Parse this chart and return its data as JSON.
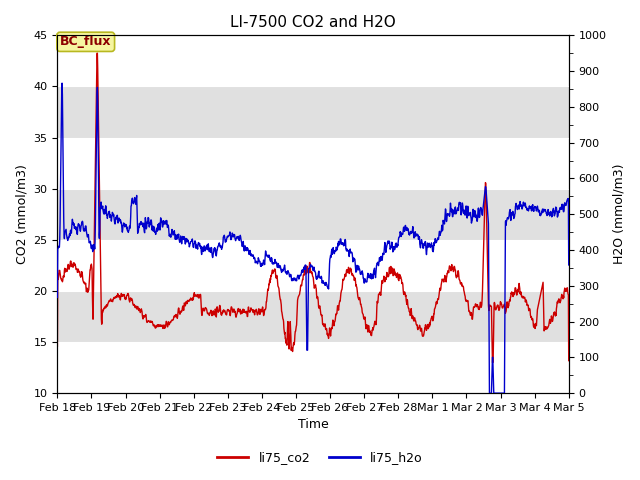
{
  "title": "LI-7500 CO2 and H2O",
  "xlabel": "Time",
  "ylabel_left": "CO2 (mmol/m3)",
  "ylabel_right": "H2O (mmol/m3)",
  "ylim_left": [
    10,
    45
  ],
  "ylim_right": [
    0,
    1000
  ],
  "yticks_left": [
    10,
    15,
    20,
    25,
    30,
    35,
    40,
    45
  ],
  "yticks_right": [
    0,
    100,
    200,
    300,
    400,
    500,
    600,
    700,
    800,
    900,
    1000
  ],
  "xtick_labels": [
    "Feb 18",
    "Feb 19",
    "Feb 20",
    "Feb 21",
    "Feb 22",
    "Feb 23",
    "Feb 24",
    "Feb 25",
    "Feb 26",
    "Feb 27",
    "Feb 28",
    "Mar 1",
    "Mar 2",
    "Mar 3",
    "Mar 4",
    "Mar 5"
  ],
  "co2_color": "#cc0000",
  "h2o_color": "#0000cc",
  "background_color": "#ffffff",
  "plot_bg_color": "#ffffff",
  "band_color": "#e0e0e0",
  "legend_label_co2": "li75_co2",
  "legend_label_h2o": "li75_h2o",
  "annotation_text": "BC_flux",
  "title_fontsize": 11,
  "label_fontsize": 9,
  "tick_fontsize": 8,
  "linewidth": 1.0
}
